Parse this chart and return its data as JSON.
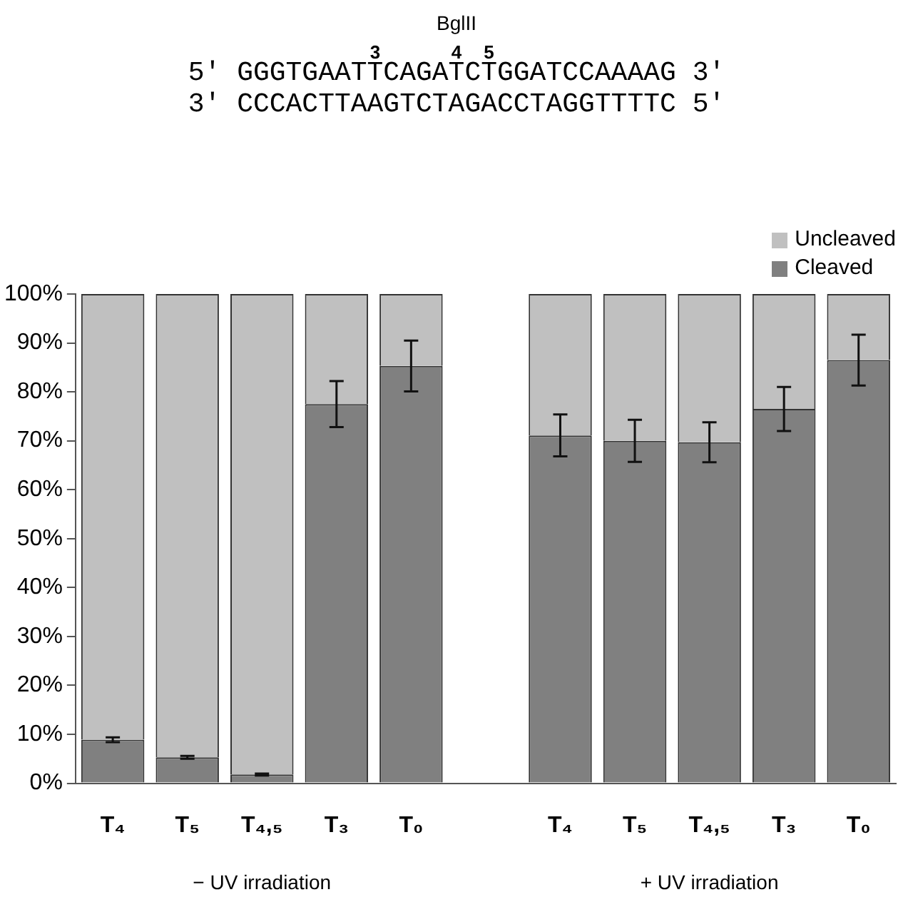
{
  "chart_data": {
    "type": "bar",
    "stacked": true,
    "title": "BglII",
    "annotations": [
      "3",
      "4",
      "5",
      "5′ GGGTGAATTCAGATCTGGATCCAAAAG 3′",
      "3′ CCCACTTAAGTCTAGACCTAGGTTTTC 5′",
      "− UV irradiation",
      "+ UV irradiation"
    ],
    "categories": [
      "T₄",
      "T₅",
      "T₄,₅",
      "T₃",
      "T₀",
      null,
      "T₄",
      "T₅",
      "T₄,₅",
      "T₃",
      "T₀"
    ],
    "series": [
      {
        "name": "Cleaved",
        "color": "#808080",
        "values": [
          8.9,
          5.3,
          1.8,
          77.5,
          85.3,
          0,
          71.1,
          70.0,
          69.7,
          76.5,
          86.5
        ],
        "errors": [
          0.5,
          0.3,
          0.2,
          4.7,
          5.2,
          null,
          4.3,
          4.3,
          4.1,
          4.5,
          5.2
        ]
      },
      {
        "name": "Uncleaved",
        "color": "#c0c0c0",
        "values": [
          91.1,
          94.7,
          98.2,
          22.5,
          14.7,
          0,
          28.9,
          30.0,
          30.3,
          23.5,
          13.5
        ]
      }
    ],
    "ylim": [
      0,
      100
    ],
    "yticks": [
      {
        "value": 0,
        "label": "0%"
      },
      {
        "value": 10,
        "label": "10%"
      },
      {
        "value": 20,
        "label": "20%"
      },
      {
        "value": 30,
        "label": "30%"
      },
      {
        "value": 40,
        "label": "40%"
      },
      {
        "value": 50,
        "label": "50%"
      },
      {
        "value": 60,
        "label": "60%"
      },
      {
        "value": 70,
        "label": "70%"
      },
      {
        "value": 80,
        "label": "80%"
      },
      {
        "value": 90,
        "label": "90%"
      },
      {
        "value": 100,
        "label": "100%"
      }
    ],
    "grid": false,
    "legend": "top right"
  }
}
